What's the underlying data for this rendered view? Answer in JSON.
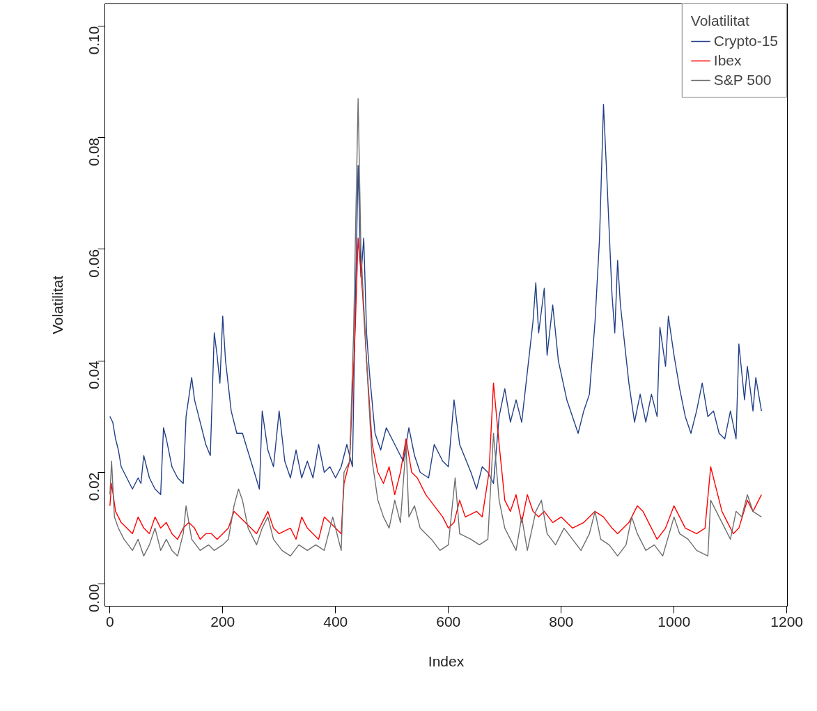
{
  "chart_data": {
    "type": "line",
    "xlabel": "Index",
    "ylabel": "Volatilitat",
    "legend_title": "Volatilitat",
    "legend": "top right",
    "grid": false,
    "xlim": [
      -9,
      1201
    ],
    "ylim": [
      -0.004,
      0.104
    ],
    "xticks": [
      0,
      200,
      400,
      600,
      800,
      1000,
      1200
    ],
    "yticks": [
      {
        "value": 0,
        "label": "0.00"
      },
      {
        "value": 0.02,
        "label": "0.02"
      },
      {
        "value": 0.04,
        "label": "0.04"
      },
      {
        "value": 0.06,
        "label": "0.06"
      },
      {
        "value": 0.08,
        "label": "0.08"
      },
      {
        "value": 0.1,
        "label": "0.10"
      }
    ],
    "series": [
      {
        "name": "Crypto-15",
        "color": "#223f88",
        "x": [
          0,
          5,
          10,
          15,
          20,
          30,
          40,
          50,
          55,
          60,
          70,
          80,
          90,
          95,
          100,
          110,
          120,
          130,
          135,
          145,
          150,
          160,
          170,
          178,
          185,
          190,
          195,
          200,
          205,
          215,
          225,
          235,
          250,
          265,
          270,
          280,
          290,
          300,
          310,
          320,
          330,
          340,
          350,
          360,
          370,
          380,
          390,
          400,
          410,
          420,
          430,
          435,
          440,
          445,
          450,
          455,
          460,
          470,
          480,
          490,
          500,
          510,
          520,
          530,
          540,
          550,
          565,
          575,
          590,
          600,
          610,
          620,
          640,
          650,
          660,
          670,
          680,
          690,
          700,
          710,
          720,
          730,
          740,
          750,
          755,
          760,
          770,
          775,
          785,
          795,
          810,
          820,
          830,
          840,
          850,
          860,
          868,
          875,
          880,
          890,
          895,
          900,
          905,
          920,
          930,
          940,
          950,
          960,
          970,
          975,
          985,
          990,
          1000,
          1010,
          1020,
          1030,
          1040,
          1050,
          1060,
          1070,
          1080,
          1090,
          1100,
          1110,
          1115,
          1125,
          1130,
          1140,
          1145,
          1155
        ],
        "values": [
          0.03,
          0.029,
          0.026,
          0.024,
          0.021,
          0.019,
          0.017,
          0.019,
          0.018,
          0.023,
          0.019,
          0.017,
          0.016,
          0.028,
          0.026,
          0.021,
          0.019,
          0.018,
          0.03,
          0.037,
          0.033,
          0.029,
          0.025,
          0.023,
          0.045,
          0.041,
          0.036,
          0.048,
          0.04,
          0.031,
          0.027,
          0.027,
          0.022,
          0.017,
          0.031,
          0.024,
          0.021,
          0.031,
          0.022,
          0.019,
          0.024,
          0.019,
          0.022,
          0.019,
          0.025,
          0.02,
          0.021,
          0.019,
          0.021,
          0.025,
          0.021,
          0.05,
          0.075,
          0.055,
          0.062,
          0.045,
          0.038,
          0.027,
          0.024,
          0.028,
          0.026,
          0.024,
          0.022,
          0.028,
          0.023,
          0.02,
          0.019,
          0.025,
          0.022,
          0.021,
          0.033,
          0.025,
          0.02,
          0.017,
          0.021,
          0.02,
          0.018,
          0.03,
          0.035,
          0.029,
          0.033,
          0.029,
          0.038,
          0.047,
          0.054,
          0.045,
          0.053,
          0.041,
          0.05,
          0.04,
          0.033,
          0.03,
          0.027,
          0.031,
          0.034,
          0.047,
          0.062,
          0.086,
          0.075,
          0.052,
          0.045,
          0.058,
          0.05,
          0.036,
          0.029,
          0.034,
          0.029,
          0.034,
          0.03,
          0.046,
          0.039,
          0.048,
          0.041,
          0.035,
          0.03,
          0.027,
          0.031,
          0.036,
          0.03,
          0.031,
          0.027,
          0.026,
          0.031,
          0.026,
          0.043,
          0.033,
          0.039,
          0.031,
          0.037,
          0.031
        ]
      },
      {
        "name": "Ibex",
        "color": "#ff0000",
        "x": [
          0,
          3,
          10,
          20,
          30,
          40,
          50,
          60,
          70,
          80,
          90,
          100,
          110,
          120,
          130,
          140,
          150,
          160,
          170,
          180,
          190,
          200,
          210,
          220,
          230,
          240,
          250,
          260,
          270,
          280,
          290,
          300,
          320,
          330,
          340,
          350,
          360,
          370,
          380,
          390,
          410,
          415,
          425,
          435,
          440,
          448,
          455,
          465,
          475,
          485,
          495,
          505,
          515,
          525,
          535,
          545,
          560,
          575,
          590,
          600,
          610,
          620,
          630,
          650,
          660,
          672,
          680,
          690,
          700,
          710,
          720,
          730,
          740,
          750,
          760,
          770,
          785,
          800,
          820,
          840,
          860,
          875,
          890,
          900,
          920,
          935,
          945,
          960,
          970,
          985,
          1000,
          1010,
          1020,
          1040,
          1055,
          1065,
          1075,
          1085,
          1095,
          1105,
          1115,
          1130,
          1140,
          1155
        ],
        "values": [
          0.014,
          0.018,
          0.013,
          0.011,
          0.01,
          0.009,
          0.012,
          0.01,
          0.009,
          0.012,
          0.01,
          0.011,
          0.009,
          0.008,
          0.01,
          0.011,
          0.01,
          0.008,
          0.009,
          0.009,
          0.008,
          0.009,
          0.01,
          0.013,
          0.012,
          0.011,
          0.01,
          0.009,
          0.011,
          0.013,
          0.01,
          0.009,
          0.01,
          0.008,
          0.012,
          0.01,
          0.009,
          0.008,
          0.012,
          0.011,
          0.009,
          0.018,
          0.022,
          0.046,
          0.062,
          0.052,
          0.04,
          0.025,
          0.02,
          0.018,
          0.021,
          0.016,
          0.02,
          0.026,
          0.02,
          0.019,
          0.016,
          0.014,
          0.012,
          0.01,
          0.011,
          0.015,
          0.012,
          0.013,
          0.012,
          0.02,
          0.036,
          0.025,
          0.015,
          0.013,
          0.016,
          0.011,
          0.016,
          0.013,
          0.012,
          0.013,
          0.011,
          0.012,
          0.01,
          0.011,
          0.013,
          0.012,
          0.01,
          0.009,
          0.011,
          0.014,
          0.013,
          0.01,
          0.008,
          0.01,
          0.014,
          0.012,
          0.01,
          0.009,
          0.01,
          0.021,
          0.017,
          0.013,
          0.011,
          0.009,
          0.01,
          0.015,
          0.013,
          0.016
        ]
      },
      {
        "name": "S&P 500",
        "color": "#6e6e6e",
        "x": [
          0,
          3,
          8,
          15,
          25,
          40,
          50,
          60,
          70,
          80,
          90,
          100,
          110,
          120,
          130,
          135,
          145,
          160,
          175,
          185,
          200,
          210,
          220,
          228,
          235,
          245,
          260,
          270,
          280,
          290,
          305,
          320,
          335,
          350,
          365,
          380,
          395,
          410,
          415,
          425,
          432,
          440,
          445,
          455,
          465,
          475,
          485,
          495,
          505,
          515,
          525,
          530,
          540,
          550,
          570,
          585,
          600,
          612,
          620,
          640,
          655,
          670,
          680,
          690,
          700,
          710,
          720,
          730,
          740,
          755,
          765,
          775,
          790,
          805,
          820,
          835,
          850,
          860,
          870,
          885,
          900,
          915,
          925,
          935,
          950,
          965,
          980,
          1000,
          1010,
          1025,
          1040,
          1060,
          1065,
          1075,
          1090,
          1100,
          1110,
          1120,
          1130,
          1140,
          1155
        ],
        "values": [
          0.016,
          0.022,
          0.012,
          0.01,
          0.008,
          0.006,
          0.008,
          0.005,
          0.007,
          0.01,
          0.006,
          0.008,
          0.006,
          0.005,
          0.009,
          0.014,
          0.008,
          0.006,
          0.007,
          0.006,
          0.007,
          0.008,
          0.014,
          0.017,
          0.015,
          0.01,
          0.007,
          0.01,
          0.012,
          0.008,
          0.006,
          0.005,
          0.007,
          0.006,
          0.007,
          0.006,
          0.012,
          0.006,
          0.02,
          0.022,
          0.045,
          0.087,
          0.06,
          0.04,
          0.022,
          0.015,
          0.012,
          0.01,
          0.015,
          0.011,
          0.025,
          0.012,
          0.014,
          0.01,
          0.008,
          0.006,
          0.007,
          0.019,
          0.009,
          0.008,
          0.007,
          0.008,
          0.027,
          0.015,
          0.01,
          0.008,
          0.006,
          0.012,
          0.006,
          0.013,
          0.015,
          0.009,
          0.007,
          0.01,
          0.008,
          0.006,
          0.009,
          0.013,
          0.008,
          0.007,
          0.005,
          0.007,
          0.012,
          0.009,
          0.006,
          0.007,
          0.005,
          0.012,
          0.009,
          0.008,
          0.006,
          0.005,
          0.015,
          0.013,
          0.01,
          0.008,
          0.013,
          0.012,
          0.016,
          0.013,
          0.012
        ]
      }
    ]
  }
}
